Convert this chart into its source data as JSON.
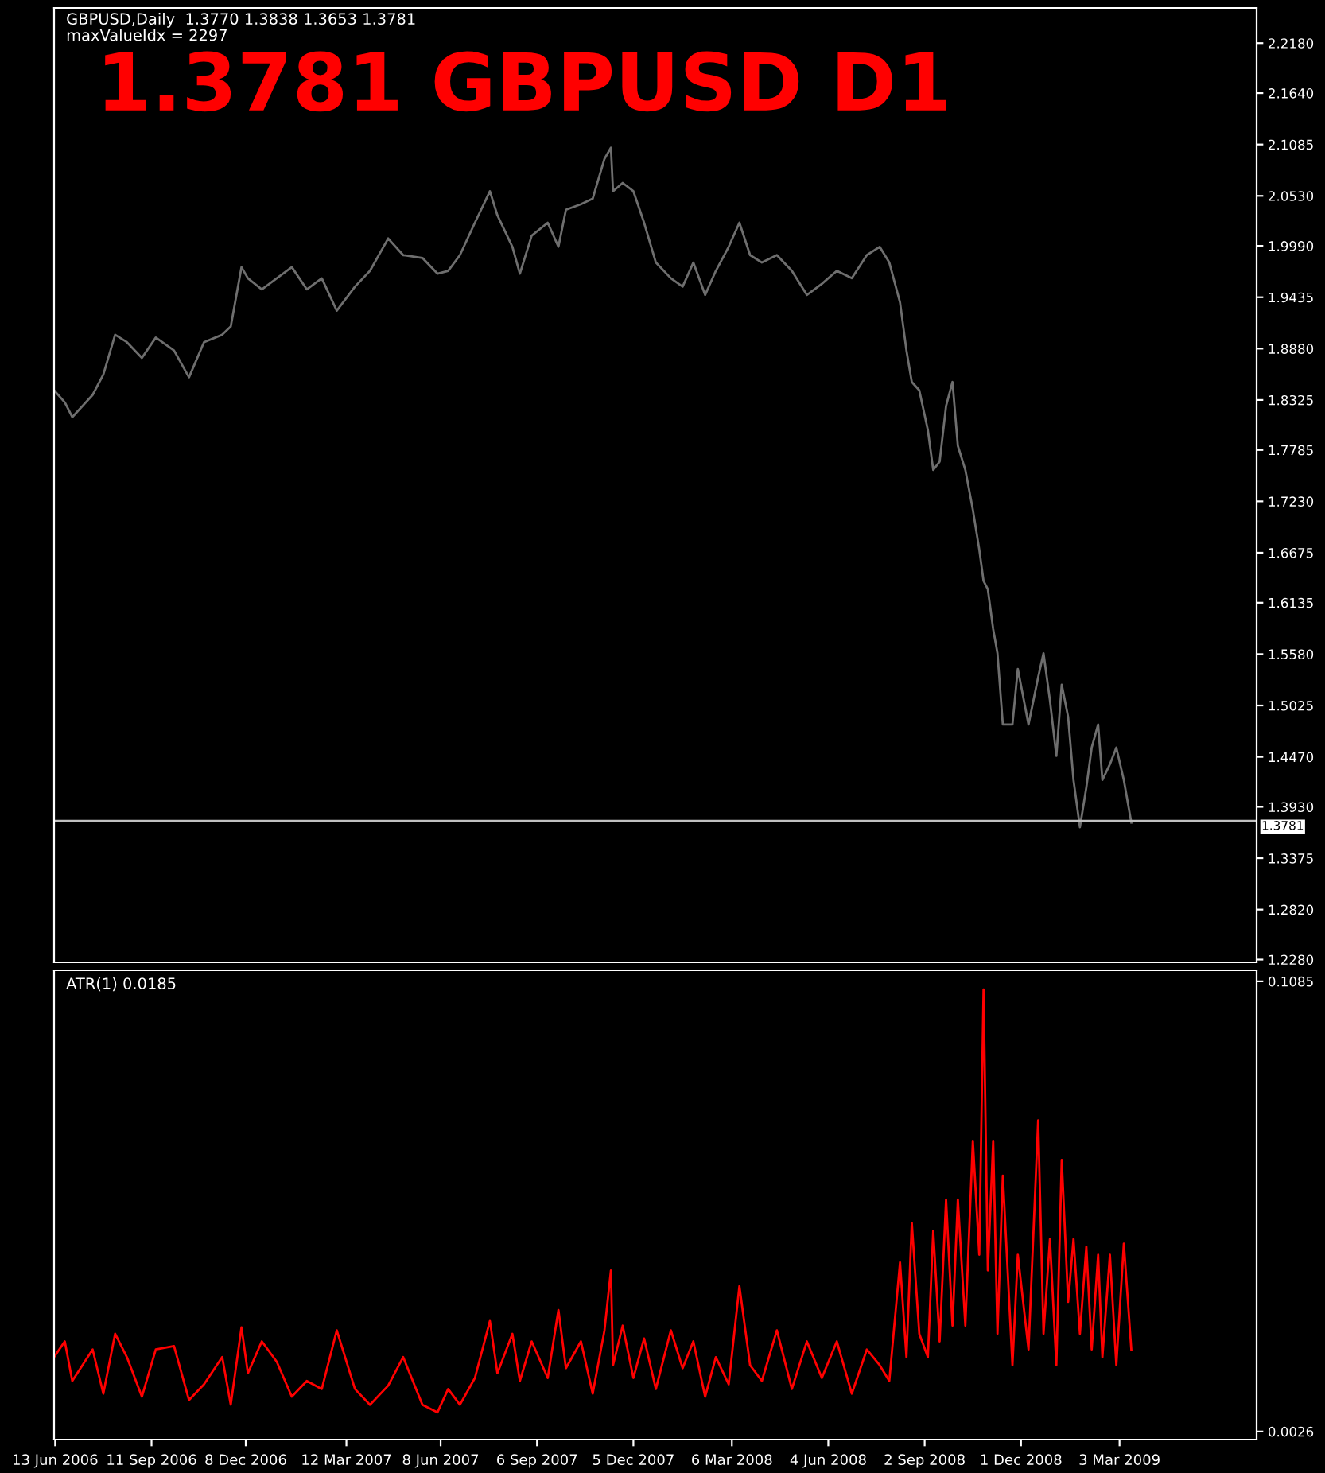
{
  "chart_data": [
    {
      "type": "line",
      "title": "1.3781 GBPUSD D1",
      "subtitle": "GBPUSD,Daily  1.3770 1.3838 1.3653 1.3781",
      "annotations": [
        "maxValueIdx = 2297"
      ],
      "x": [
        "2006-06-12",
        "2006-06-22",
        "2006-06-29",
        "2006-07-18",
        "2006-07-28",
        "2006-08-08",
        "2006-08-19",
        "2006-09-02",
        "2006-09-15",
        "2006-10-02",
        "2006-10-16",
        "2006-10-30",
        "2006-11-16",
        "2006-11-24",
        "2006-12-04",
        "2006-12-10",
        "2006-12-23",
        "2007-01-06",
        "2007-01-20",
        "2007-02-03",
        "2007-02-17",
        "2007-03-03",
        "2007-03-20",
        "2007-04-03",
        "2007-04-20",
        "2007-05-04",
        "2007-05-22",
        "2007-06-05",
        "2007-06-15",
        "2007-06-26",
        "2007-07-10",
        "2007-07-24",
        "2007-07-31",
        "2007-08-14",
        "2007-08-21",
        "2007-09-01",
        "2007-09-16",
        "2007-09-26",
        "2007-10-03",
        "2007-10-17",
        "2007-10-28",
        "2007-11-08",
        "2007-11-14",
        "2007-11-16",
        "2007-11-25",
        "2007-12-05",
        "2007-12-15",
        "2007-12-26",
        "2008-01-09",
        "2008-01-20",
        "2008-01-30",
        "2008-02-10",
        "2008-02-20",
        "2008-03-03",
        "2008-03-13",
        "2008-03-23",
        "2008-04-03",
        "2008-04-17",
        "2008-05-01",
        "2008-05-15",
        "2008-05-29",
        "2008-06-12",
        "2008-06-26",
        "2008-07-10",
        "2008-07-22",
        "2008-07-31",
        "2008-08-10",
        "2008-08-16",
        "2008-08-21",
        "2008-08-28",
        "2008-09-05",
        "2008-09-10",
        "2008-09-16",
        "2008-09-22",
        "2008-09-28",
        "2008-10-03",
        "2008-10-10",
        "2008-10-17",
        "2008-10-23",
        "2008-10-27",
        "2008-10-31",
        "2008-11-05",
        "2008-11-09",
        "2008-11-14",
        "2008-11-23",
        "2008-11-28",
        "2008-12-08",
        "2008-12-17",
        "2008-12-22",
        "2008-12-28",
        "2009-01-03",
        "2009-01-08",
        "2009-01-14",
        "2009-01-19",
        "2009-01-25",
        "2009-01-31",
        "2009-02-05",
        "2009-02-11",
        "2009-02-15",
        "2009-02-22",
        "2009-02-28",
        "2009-03-07",
        "2009-03-14"
      ],
      "series": [
        {
          "color": "#6e6e6e",
          "values": [
            1.843,
            1.83,
            1.814,
            1.838,
            1.86,
            1.903,
            1.895,
            1.878,
            1.9,
            1.886,
            1.857,
            1.895,
            1.903,
            1.912,
            1.976,
            1.964,
            1.952,
            1.964,
            1.976,
            1.952,
            1.964,
            1.929,
            1.955,
            1.972,
            2.007,
            1.989,
            1.986,
            1.969,
            1.972,
            1.989,
            2.024,
            2.058,
            2.032,
            1.998,
            1.969,
            2.01,
            2.024,
            1.998,
            2.038,
            2.044,
            2.05,
            2.093,
            2.105,
            2.058,
            2.067,
            2.058,
            2.024,
            1.981,
            1.964,
            1.955,
            1.981,
            1.946,
            1.972,
            1.998,
            2.024,
            1.989,
            1.981,
            1.989,
            1.972,
            1.946,
            1.958,
            1.972,
            1.964,
            1.989,
            1.998,
            1.981,
            1.938,
            1.886,
            1.852,
            1.843,
            1.8,
            1.757,
            1.766,
            1.826,
            1.852,
            1.783,
            1.757,
            1.714,
            1.671,
            1.637,
            1.628,
            1.585,
            1.559,
            1.482,
            1.482,
            1.542,
            1.482,
            1.533,
            1.559,
            1.508,
            1.448,
            1.525,
            1.49,
            1.422,
            1.371,
            1.414,
            1.457,
            1.482,
            1.422,
            1.439,
            1.457,
            1.422,
            1.376
          ]
        }
      ],
      "xlim": [
        "2006-06-12",
        "2009-07-09"
      ],
      "ylim": [
        1.225,
        2.256
      ],
      "yticks": [
        {
          "value": 1.228,
          "label": "1.2280"
        },
        {
          "value": 1.282,
          "label": "1.2820"
        },
        {
          "value": 1.3375,
          "label": "1.3375"
        },
        {
          "value": 1.393,
          "label": "1.3930"
        },
        {
          "value": 1.447,
          "label": "1.4470"
        },
        {
          "value": 1.5025,
          "label": "1.5025"
        },
        {
          "value": 1.558,
          "label": "1.5580"
        },
        {
          "value": 1.6135,
          "label": "1.6135"
        },
        {
          "value": 1.6675,
          "label": "1.6675"
        },
        {
          "value": 1.723,
          "label": "1.7230"
        },
        {
          "value": 1.7785,
          "label": "1.7785"
        },
        {
          "value": 1.8325,
          "label": "1.8325"
        },
        {
          "value": 1.888,
          "label": "1.8880"
        },
        {
          "value": 1.9435,
          "label": "1.9435"
        },
        {
          "value": 1.999,
          "label": "1.9990"
        },
        {
          "value": 2.053,
          "label": "2.0530"
        },
        {
          "value": 2.1085,
          "label": "2.1085"
        },
        {
          "value": 2.164,
          "label": "2.1640"
        },
        {
          "value": 2.218,
          "label": "2.2180"
        }
      ],
      "ref_lines": [
        {
          "axis": "y",
          "value": 1.3781,
          "label": "1.3781",
          "color": "#c0c0c0"
        }
      ],
      "tick_labels": "y"
    },
    {
      "type": "line",
      "title": "ATR(1) 0.0185",
      "x": [
        "2006-06-12",
        "2006-06-22",
        "2006-06-29",
        "2006-07-18",
        "2006-07-28",
        "2006-08-08",
        "2006-08-19",
        "2006-09-02",
        "2006-09-15",
        "2006-10-02",
        "2006-10-16",
        "2006-10-30",
        "2006-11-16",
        "2006-11-24",
        "2006-12-04",
        "2006-12-10",
        "2006-12-23",
        "2007-01-06",
        "2007-01-20",
        "2007-02-03",
        "2007-02-17",
        "2007-03-03",
        "2007-03-20",
        "2007-04-03",
        "2007-04-20",
        "2007-05-04",
        "2007-05-22",
        "2007-06-05",
        "2007-06-15",
        "2007-06-26",
        "2007-07-10",
        "2007-07-24",
        "2007-07-31",
        "2007-08-14",
        "2007-08-21",
        "2007-09-01",
        "2007-09-16",
        "2007-09-26",
        "2007-10-03",
        "2007-10-17",
        "2007-10-28",
        "2007-11-08",
        "2007-11-14",
        "2007-11-16",
        "2007-11-25",
        "2007-12-05",
        "2007-12-15",
        "2007-12-26",
        "2008-01-09",
        "2008-01-20",
        "2008-01-30",
        "2008-02-10",
        "2008-02-20",
        "2008-03-03",
        "2008-03-13",
        "2008-03-23",
        "2008-04-03",
        "2008-04-17",
        "2008-05-01",
        "2008-05-15",
        "2008-05-29",
        "2008-06-12",
        "2008-06-26",
        "2008-07-10",
        "2008-07-22",
        "2008-07-31",
        "2008-08-10",
        "2008-08-16",
        "2008-08-21",
        "2008-08-28",
        "2008-09-05",
        "2008-09-10",
        "2008-09-16",
        "2008-09-22",
        "2008-09-28",
        "2008-10-03",
        "2008-10-10",
        "2008-10-17",
        "2008-10-23",
        "2008-10-27",
        "2008-10-31",
        "2008-11-05",
        "2008-11-09",
        "2008-11-14",
        "2008-11-23",
        "2008-11-28",
        "2008-12-08",
        "2008-12-17",
        "2008-12-22",
        "2008-12-28",
        "2009-01-03",
        "2009-01-08",
        "2009-01-14",
        "2009-01-19",
        "2009-01-25",
        "2009-01-31",
        "2009-02-05",
        "2009-02-11",
        "2009-02-15",
        "2009-02-22",
        "2009-02-28",
        "2009-03-07",
        "2009-03-14"
      ],
      "series": [
        {
          "color": "#ff0000",
          "values": [
            0.0201,
            0.0238,
            0.0145,
            0.0219,
            0.0115,
            0.0256,
            0.0201,
            0.0108,
            0.0219,
            0.0227,
            0.01,
            0.0137,
            0.0201,
            0.0089,
            0.0271,
            0.0163,
            0.0238,
            0.019,
            0.0108,
            0.0145,
            0.0126,
            0.0264,
            0.0126,
            0.0089,
            0.0134,
            0.0201,
            0.0089,
            0.0071,
            0.0126,
            0.0089,
            0.0152,
            0.0286,
            0.0163,
            0.0256,
            0.0145,
            0.0238,
            0.0152,
            0.0312,
            0.0175,
            0.0238,
            0.0115,
            0.0264,
            0.0405,
            0.0182,
            0.0275,
            0.0152,
            0.0245,
            0.0126,
            0.0264,
            0.0175,
            0.0238,
            0.0108,
            0.0201,
            0.0137,
            0.0368,
            0.0182,
            0.0145,
            0.0264,
            0.0126,
            0.0238,
            0.0152,
            0.0238,
            0.0115,
            0.0219,
            0.0182,
            0.0145,
            0.0424,
            0.0201,
            0.0517,
            0.0256,
            0.0201,
            0.0498,
            0.0238,
            0.0572,
            0.0275,
            0.0572,
            0.0275,
            0.071,
            0.0442,
            0.1066,
            0.0405,
            0.071,
            0.0256,
            0.0628,
            0.0182,
            0.0442,
            0.0219,
            0.0758,
            0.0256,
            0.0479,
            0.0182,
            0.0665,
            0.0331,
            0.0479,
            0.0256,
            0.0461,
            0.0219,
            0.0442,
            0.0201,
            0.0442,
            0.0182,
            0.0468,
            0.0219
          ]
        }
      ],
      "xlim": [
        "2006-06-12",
        "2009-07-09"
      ],
      "xticks": [
        {
          "value": "2006-06-13",
          "label": "13 Jun 2006"
        },
        {
          "value": "2006-09-11",
          "label": "11 Sep 2006"
        },
        {
          "value": "2006-12-08",
          "label": "8 Dec 2006"
        },
        {
          "value": "2007-03-12",
          "label": "12 Mar 2007"
        },
        {
          "value": "2007-06-08",
          "label": "8 Jun 2007"
        },
        {
          "value": "2007-09-06",
          "label": "6 Sep 2007"
        },
        {
          "value": "2007-12-05",
          "label": "5 Dec 2007"
        },
        {
          "value": "2008-03-06",
          "label": "6 Mar 2008"
        },
        {
          "value": "2008-06-04",
          "label": "4 Jun 2008"
        },
        {
          "value": "2008-09-02",
          "label": "2 Sep 2008"
        },
        {
          "value": "2008-12-01",
          "label": "1 Dec 2008"
        },
        {
          "value": "2009-03-03",
          "label": "3 Mar 2009"
        }
      ],
      "ylim": [
        0.0007,
        0.1111
      ],
      "yticks": [
        {
          "value": 0.0026,
          "label": "0.0026"
        },
        {
          "value": 0.1085,
          "label": "0.1085"
        }
      ]
    }
  ]
}
